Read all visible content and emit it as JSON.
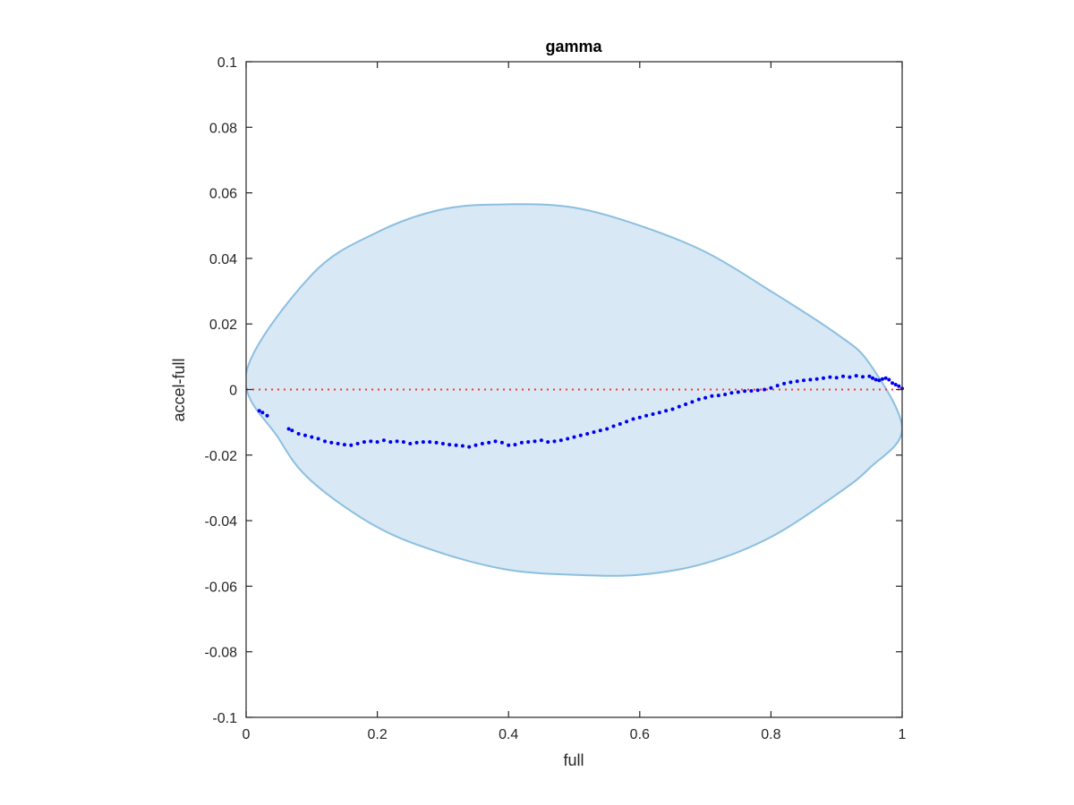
{
  "chart_data": {
    "type": "scatter",
    "title": "gamma",
    "xlabel": "full",
    "ylabel": "accel-full",
    "xlim": [
      0,
      1
    ],
    "ylim": [
      -0.1,
      0.1
    ],
    "xticks": [
      0,
      0.2,
      0.4,
      0.6,
      0.8,
      1
    ],
    "xtick_labels": [
      "0",
      "0.2",
      "0.4",
      "0.6",
      "0.8",
      "1"
    ],
    "yticks": [
      0.1,
      0.08,
      0.06,
      0.04,
      0.02,
      0,
      -0.02,
      -0.04,
      -0.06,
      -0.08,
      -0.1
    ],
    "ytick_labels": [
      "0.1",
      "0.08",
      "0.06",
      "0.04",
      "0.02",
      "0",
      "-0.02",
      "-0.04",
      "-0.06",
      "-0.08",
      "-0.1"
    ],
    "grid": false,
    "colors": {
      "points": "#0000ee",
      "zero_line": "#ff3030",
      "ellipse_fill": "#d8e8f4",
      "ellipse_edge": "#8cbfe0",
      "axes": "#262626"
    },
    "reference_line": {
      "y": 0,
      "style": "dotted"
    },
    "region": {
      "shape": "ellipse",
      "upper": [
        [
          0,
          0.005
        ],
        [
          0.1,
          0.035
        ],
        [
          0.2,
          0.048
        ],
        [
          0.3,
          0.055
        ],
        [
          0.4,
          0.0565
        ],
        [
          0.5,
          0.0555
        ],
        [
          0.6,
          0.05
        ],
        [
          0.7,
          0.042
        ],
        [
          0.8,
          0.03
        ],
        [
          0.9,
          0.017
        ],
        [
          0.95,
          0.008
        ],
        [
          1.0,
          -0.012
        ]
      ],
      "lower": [
        [
          0,
          0.005
        ],
        [
          0.05,
          -0.015
        ],
        [
          0.1,
          -0.028
        ],
        [
          0.2,
          -0.042
        ],
        [
          0.3,
          -0.05
        ],
        [
          0.4,
          -0.055
        ],
        [
          0.5,
          -0.0565
        ],
        [
          0.6,
          -0.0565
        ],
        [
          0.7,
          -0.053
        ],
        [
          0.8,
          -0.045
        ],
        [
          0.9,
          -0.032
        ],
        [
          0.95,
          -0.024
        ],
        [
          1.0,
          -0.012
        ]
      ]
    },
    "series": [
      {
        "points": [
          [
            0.02,
            -0.0065
          ],
          [
            0.025,
            -0.007
          ],
          [
            0.032,
            -0.008
          ],
          [
            0.065,
            -0.012
          ],
          [
            0.07,
            -0.0125
          ],
          [
            0.08,
            -0.0135
          ],
          [
            0.09,
            -0.014
          ],
          [
            0.1,
            -0.0145
          ],
          [
            0.11,
            -0.015
          ],
          [
            0.12,
            -0.0158
          ],
          [
            0.13,
            -0.0162
          ],
          [
            0.14,
            -0.0165
          ],
          [
            0.15,
            -0.0168
          ],
          [
            0.16,
            -0.017
          ],
          [
            0.17,
            -0.0165
          ],
          [
            0.18,
            -0.016
          ],
          [
            0.19,
            -0.0158
          ],
          [
            0.2,
            -0.016
          ],
          [
            0.21,
            -0.0155
          ],
          [
            0.22,
            -0.016
          ],
          [
            0.23,
            -0.0158
          ],
          [
            0.24,
            -0.016
          ],
          [
            0.25,
            -0.0165
          ],
          [
            0.26,
            -0.0162
          ],
          [
            0.27,
            -0.016
          ],
          [
            0.28,
            -0.016
          ],
          [
            0.29,
            -0.0162
          ],
          [
            0.3,
            -0.0165
          ],
          [
            0.31,
            -0.0168
          ],
          [
            0.32,
            -0.017
          ],
          [
            0.33,
            -0.0172
          ],
          [
            0.34,
            -0.0175
          ],
          [
            0.35,
            -0.017
          ],
          [
            0.36,
            -0.0165
          ],
          [
            0.37,
            -0.0162
          ],
          [
            0.38,
            -0.0158
          ],
          [
            0.39,
            -0.0162
          ],
          [
            0.4,
            -0.017
          ],
          [
            0.41,
            -0.0168
          ],
          [
            0.42,
            -0.0162
          ],
          [
            0.43,
            -0.016
          ],
          [
            0.44,
            -0.0158
          ],
          [
            0.45,
            -0.0155
          ],
          [
            0.46,
            -0.016
          ],
          [
            0.47,
            -0.0158
          ],
          [
            0.48,
            -0.0155
          ],
          [
            0.49,
            -0.015
          ],
          [
            0.5,
            -0.0145
          ],
          [
            0.51,
            -0.014
          ],
          [
            0.52,
            -0.0135
          ],
          [
            0.53,
            -0.013
          ],
          [
            0.54,
            -0.0125
          ],
          [
            0.55,
            -0.012
          ],
          [
            0.56,
            -0.0112
          ],
          [
            0.57,
            -0.0105
          ],
          [
            0.58,
            -0.0098
          ],
          [
            0.59,
            -0.009
          ],
          [
            0.6,
            -0.0085
          ],
          [
            0.61,
            -0.008
          ],
          [
            0.62,
            -0.0075
          ],
          [
            0.63,
            -0.007
          ],
          [
            0.64,
            -0.0065
          ],
          [
            0.65,
            -0.006
          ],
          [
            0.66,
            -0.0052
          ],
          [
            0.67,
            -0.0045
          ],
          [
            0.68,
            -0.0038
          ],
          [
            0.69,
            -0.003
          ],
          [
            0.7,
            -0.0025
          ],
          [
            0.71,
            -0.002
          ],
          [
            0.72,
            -0.0018
          ],
          [
            0.73,
            -0.0015
          ],
          [
            0.74,
            -0.001
          ],
          [
            0.75,
            -0.0008
          ],
          [
            0.76,
            -0.0005
          ],
          [
            0.77,
            -0.0004
          ],
          [
            0.78,
            -0.0002
          ],
          [
            0.79,
            0.0
          ],
          [
            0.8,
            0.0005
          ],
          [
            0.81,
            0.0012
          ],
          [
            0.82,
            0.0018
          ],
          [
            0.83,
            0.0022
          ],
          [
            0.84,
            0.0025
          ],
          [
            0.85,
            0.0028
          ],
          [
            0.86,
            0.003
          ],
          [
            0.87,
            0.0032
          ],
          [
            0.88,
            0.0035
          ],
          [
            0.89,
            0.0038
          ],
          [
            0.9,
            0.0036
          ],
          [
            0.91,
            0.004
          ],
          [
            0.92,
            0.0038
          ],
          [
            0.93,
            0.0042
          ],
          [
            0.94,
            0.0039
          ],
          [
            0.95,
            0.004
          ],
          [
            0.955,
            0.0035
          ],
          [
            0.96,
            0.003
          ],
          [
            0.965,
            0.0028
          ],
          [
            0.97,
            0.0032
          ],
          [
            0.975,
            0.0035
          ],
          [
            0.98,
            0.003
          ],
          [
            0.985,
            0.002
          ],
          [
            0.99,
            0.0015
          ],
          [
            0.995,
            0.001
          ],
          [
            1.0,
            0.0003
          ]
        ]
      }
    ]
  }
}
